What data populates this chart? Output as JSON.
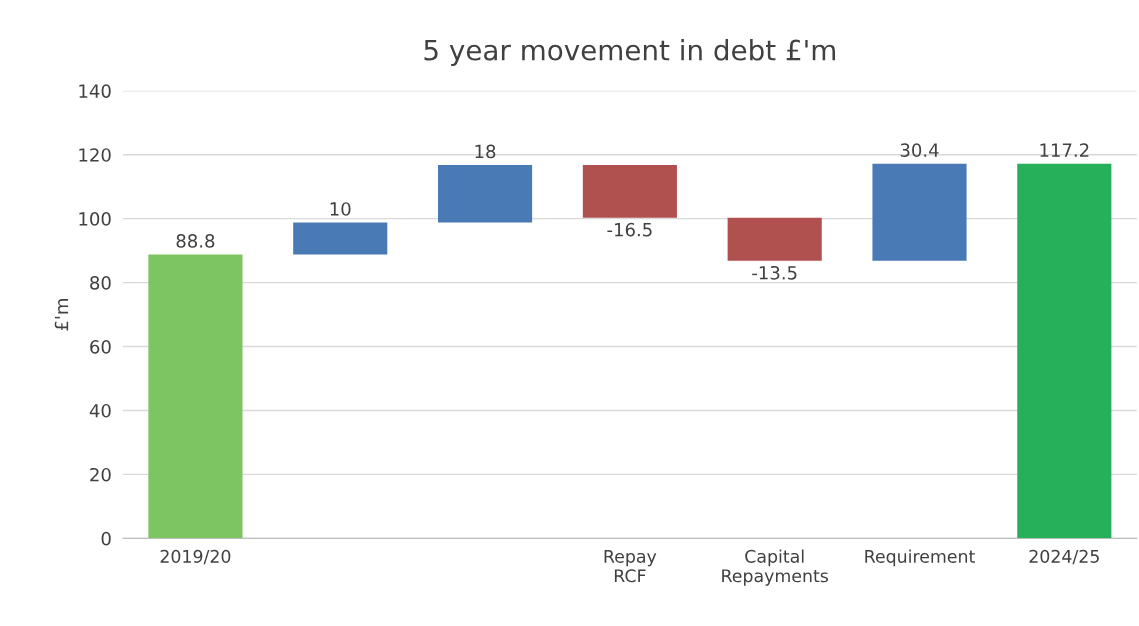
{
  "chart_data": {
    "type": "bar",
    "title": "5 year movement in debt £'m",
    "ylabel": "£'m",
    "categories": [
      "2019/20",
      null,
      null,
      "Repay\nRCF",
      "Capital\nRepayments",
      "Requirement",
      "2024/25"
    ],
    "values": [
      88.8,
      10,
      18,
      -16.5,
      -13.5,
      30.4,
      117.2
    ],
    "base": [
      0,
      88.8,
      98.8,
      116.8,
      100.3,
      86.8,
      0
    ],
    "colors": [
      "#7dc462",
      "#4a7ab5",
      "#4a7ab5",
      "#b0504f",
      "#b0504f",
      "#4a7ab5",
      "#27b05a"
    ],
    "ylim": [
      0,
      140
    ],
    "yticks": [
      0,
      20,
      40,
      60,
      80,
      100,
      120,
      140
    ],
    "grid": "y",
    "data_labels": true
  }
}
